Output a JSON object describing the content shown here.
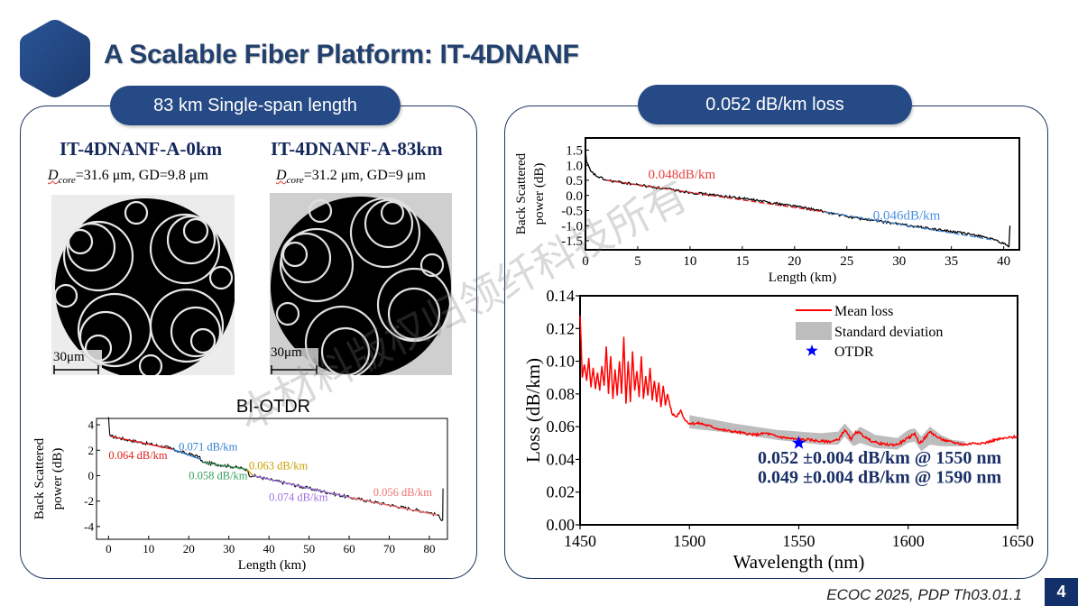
{
  "header": {
    "title": "A Scalable Fiber Platform: IT-4DNANF",
    "logo_icon": "hexagon-icon"
  },
  "left_panel": {
    "pill": "83 km Single-span length",
    "fibers": [
      {
        "name": "IT-4DNANF-A-0km",
        "dcore_symbol": "D",
        "dcore_sub": "core",
        "params": "=31.6 μm, GD=9.8 μm",
        "scale_bar": "30μm"
      },
      {
        "name": "IT-4DNANF-A-83km",
        "dcore_symbol": "D",
        "dcore_sub": "core",
        "params": "=31.2 μm, GD=9 μm",
        "scale_bar": "30μm"
      }
    ]
  },
  "right_panel": {
    "pill": "0.052 dB/km loss"
  },
  "footer": {
    "citation": "ECOC 2025, PDP Th03.01.1",
    "page_number": "4"
  },
  "watermark": "本材料版权归领纤科技所有",
  "chart_data": [
    {
      "id": "bi-otdr",
      "type": "line",
      "title": "BI-OTDR",
      "xlabel": "Length (km)",
      "ylabel_lines": [
        "Back Scattered",
        "power (dB)"
      ],
      "xlim": [
        -3,
        84.5
      ],
      "ylim": [
        -5,
        4.5
      ],
      "xticks": [
        0,
        10,
        20,
        30,
        40,
        50,
        60,
        70,
        80
      ],
      "yticks": [
        4,
        2,
        0,
        -2,
        -4
      ],
      "trace": {
        "color": "#000000",
        "x": [
          0,
          0.3,
          0.5,
          5,
          10,
          15,
          17,
          20,
          22.5,
          23.5,
          30,
          34.5,
          35,
          36,
          40,
          45,
          50,
          55,
          60,
          65,
          70,
          75,
          80,
          82,
          83.3,
          83.4
        ],
        "y": [
          4.6,
          3.2,
          3.1,
          2.8,
          2.5,
          2.2,
          1.95,
          1.7,
          1.5,
          1.05,
          0.75,
          0.5,
          0.05,
          0.0,
          -0.3,
          -0.65,
          -1.0,
          -1.35,
          -1.7,
          -2.0,
          -2.3,
          -2.6,
          -2.9,
          -3.1,
          -3.5,
          -1.0
        ]
      },
      "segments": [
        {
          "label": "0.064 dB/km",
          "color": "#e02020",
          "x": [
            0.5,
            16
          ]
        },
        {
          "label": "0.071 dB/km",
          "color": "#2f7fd0",
          "x": [
            16,
            23
          ]
        },
        {
          "label": "0.058 dB/km",
          "color": "#3aa060",
          "x": [
            23.5,
            34.5
          ]
        },
        {
          "label": "0.063 dB/km",
          "color": "#c9a000",
          "x": [
            34.5,
            36
          ]
        },
        {
          "label": "0.074 dB/km",
          "color": "#a070e0",
          "x": [
            36,
            60
          ]
        },
        {
          "label": "0.056 dB/km",
          "color": "#f07070",
          "x": [
            60,
            82
          ]
        }
      ],
      "annotations": [
        {
          "text": "0.064 dB/km",
          "color": "#e02020",
          "x": 0,
          "y": 1.3
        },
        {
          "text": "0.071 dB/km",
          "color": "#2f7fd0",
          "x": 17.5,
          "y": 2.0
        },
        {
          "text": "0.058 dB/km",
          "color": "#3aa060",
          "x": 20,
          "y": -0.3
        },
        {
          "text": "0.063 dB/km",
          "color": "#c9a000",
          "x": 35,
          "y": 0.5
        },
        {
          "text": "0.074 dB/km",
          "color": "#a070e0",
          "x": 40,
          "y": -2.0
        },
        {
          "text": "0.056 dB/km",
          "color": "#f07070",
          "x": 66,
          "y": -1.6
        }
      ]
    },
    {
      "id": "otdr-40km",
      "type": "line",
      "xlabel": "Length (km)",
      "ylabel_lines": [
        "Back Scattered",
        "power (dB)"
      ],
      "xlim": [
        0,
        41.5
      ],
      "ylim": [
        -1.8,
        1.9
      ],
      "xticks": [
        0,
        5,
        10,
        15,
        20,
        25,
        30,
        35,
        40
      ],
      "yticks": [
        1.5,
        1.0,
        0.5,
        0.0,
        -0.5,
        -1.0,
        -1.5
      ],
      "trace": {
        "color": "#000000",
        "x": [
          0,
          0.1,
          0.5,
          1,
          2,
          5,
          10,
          15,
          20,
          23,
          25,
          30,
          35,
          38,
          40,
          40.5,
          40.6
        ],
        "y": [
          1.5,
          1.1,
          0.8,
          0.65,
          0.5,
          0.35,
          0.1,
          -0.1,
          -0.35,
          -0.55,
          -0.7,
          -0.95,
          -1.2,
          -1.35,
          -1.6,
          -1.7,
          -1.0
        ]
      },
      "segments": [
        {
          "label": "0.048dB/km",
          "color": "#e02020",
          "x": [
            2,
            23
          ]
        },
        {
          "label": "0.046dB/km",
          "color": "#3a8ae0",
          "x": [
            23,
            39
          ]
        }
      ],
      "annotations": [
        {
          "text": "0.048dB/km",
          "color": "#e84040",
          "x": 6,
          "y": 0.55
        },
        {
          "text": "0.046dB/km",
          "color": "#4a90e0",
          "x": 27.5,
          "y": -0.8
        }
      ]
    },
    {
      "id": "spectral-loss",
      "type": "line",
      "xlabel": "Wavelength (nm)",
      "ylabel": "Loss (dB/km)",
      "xlim": [
        1450,
        1650
      ],
      "ylim": [
        0,
        0.14
      ],
      "xticks": [
        1450,
        1500,
        1550,
        1600,
        1650
      ],
      "yticks": [
        0.0,
        0.02,
        0.04,
        0.06,
        0.08,
        0.1,
        0.12,
        0.14
      ],
      "ytick_labels": [
        "0.00",
        "0.02",
        "0.04",
        "0.06",
        "0.08",
        "0.10",
        "0.12",
        "0.14"
      ],
      "legend": {
        "position": "top-right",
        "entries": [
          {
            "label": "Mean loss",
            "kind": "line",
            "color": "#ff0000"
          },
          {
            "label": "Standard deviation",
            "kind": "band",
            "color": "#bdbdbd"
          },
          {
            "label": "OTDR",
            "kind": "star",
            "color": "#0000ff"
          }
        ]
      },
      "std_band": {
        "x": [
          1500,
          1520,
          1540,
          1560,
          1568,
          1571,
          1575,
          1578,
          1585,
          1595,
          1600,
          1603,
          1606,
          1610,
          1615,
          1620,
          1626
        ],
        "upper": [
          0.067,
          0.062,
          0.058,
          0.056,
          0.057,
          0.062,
          0.056,
          0.06,
          0.055,
          0.053,
          0.058,
          0.059,
          0.054,
          0.06,
          0.055,
          0.052,
          0.051
        ],
        "lower": [
          0.059,
          0.056,
          0.052,
          0.049,
          0.049,
          0.054,
          0.048,
          0.05,
          0.047,
          0.046,
          0.05,
          0.051,
          0.045,
          0.049,
          0.048,
          0.048,
          0.048
        ]
      },
      "mean_loss": {
        "x": [
          1450,
          1450.5,
          1451,
          1452,
          1453,
          1454,
          1455,
          1456,
          1457,
          1458,
          1459,
          1460,
          1461,
          1462,
          1463,
          1464,
          1465,
          1466,
          1467,
          1468,
          1469,
          1470,
          1471,
          1472,
          1473,
          1474,
          1475,
          1476,
          1477,
          1478,
          1479,
          1480,
          1481,
          1482,
          1483,
          1484,
          1485,
          1486,
          1487,
          1488,
          1489,
          1490,
          1492,
          1494,
          1496,
          1498,
          1500,
          1505,
          1510,
          1515,
          1520,
          1525,
          1530,
          1535,
          1540,
          1545,
          1550,
          1555,
          1560,
          1565,
          1568,
          1571,
          1574,
          1576,
          1578,
          1582,
          1586,
          1590,
          1595,
          1600,
          1603,
          1605,
          1607,
          1610,
          1614,
          1618,
          1622,
          1626,
          1630,
          1635,
          1640,
          1645,
          1650
        ],
        "y": [
          0.128,
          0.112,
          0.09,
          0.098,
          0.088,
          0.102,
          0.084,
          0.096,
          0.083,
          0.093,
          0.082,
          0.097,
          0.085,
          0.109,
          0.08,
          0.103,
          0.077,
          0.095,
          0.079,
          0.1,
          0.08,
          0.115,
          0.074,
          0.1,
          0.075,
          0.106,
          0.082,
          0.094,
          0.078,
          0.103,
          0.077,
          0.091,
          0.079,
          0.096,
          0.076,
          0.088,
          0.075,
          0.087,
          0.072,
          0.085,
          0.073,
          0.08,
          0.068,
          0.066,
          0.07,
          0.064,
          0.062,
          0.062,
          0.06,
          0.058,
          0.057,
          0.056,
          0.055,
          0.056,
          0.054,
          0.053,
          0.052,
          0.052,
          0.051,
          0.051,
          0.052,
          0.058,
          0.052,
          0.057,
          0.056,
          0.052,
          0.05,
          0.049,
          0.049,
          0.053,
          0.056,
          0.05,
          0.052,
          0.057,
          0.053,
          0.051,
          0.05,
          0.049,
          0.05,
          0.05,
          0.052,
          0.053,
          0.054
        ]
      },
      "otdr_point": {
        "x": 1550,
        "y": 0.05
      },
      "annotations": [
        {
          "text": "0.052 ±0.004 dB/km @ 1550 nm",
          "color": "#1a2f66",
          "x": 1530,
          "y": 0.0375
        },
        {
          "text": "0.049 ±0.004 dB/km @ 1590 nm",
          "color": "#1a2f66",
          "x": 1530,
          "y": 0.0255
        }
      ]
    }
  ]
}
